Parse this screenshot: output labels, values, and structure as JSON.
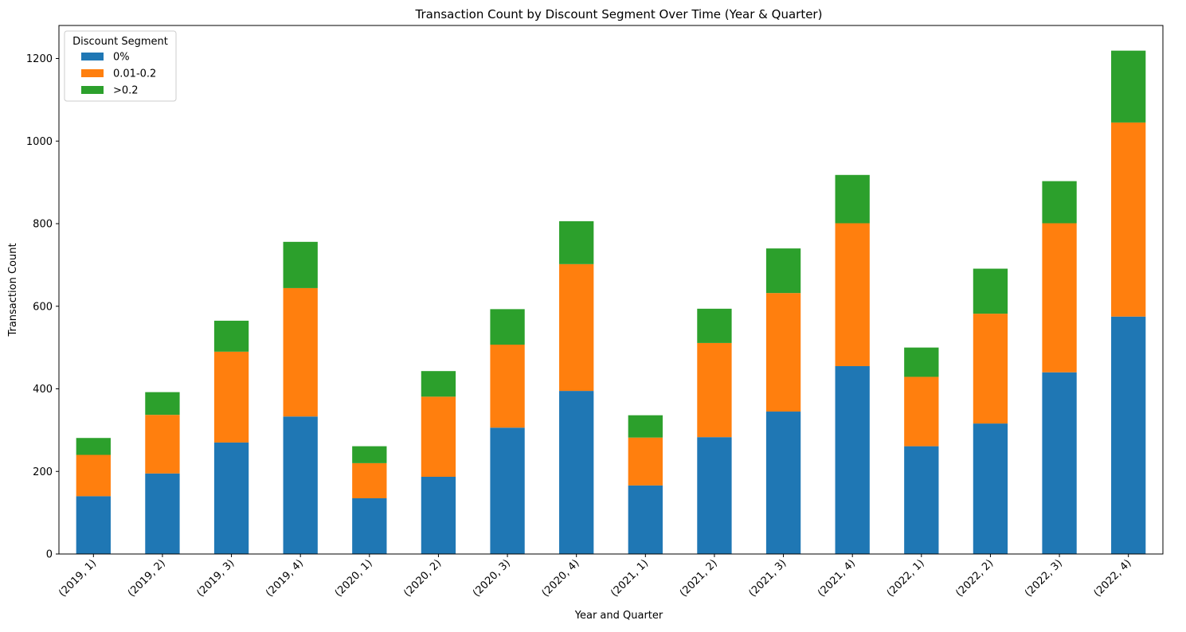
{
  "chart_data": {
    "type": "bar",
    "stacked": true,
    "title": "Transaction Count by Discount Segment Over Time (Year & Quarter)",
    "xlabel": "Year and Quarter",
    "ylabel": "Transaction Count",
    "ylim": [
      0,
      1280
    ],
    "yticks": [
      0,
      200,
      400,
      600,
      800,
      1000,
      1200
    ],
    "grid": false,
    "legend": {
      "title": "Discount Segment",
      "placement": "top-left"
    },
    "categories": [
      "(2019, 1)",
      "(2019, 2)",
      "(2019, 3)",
      "(2019, 4)",
      "(2020, 1)",
      "(2020, 2)",
      "(2020, 3)",
      "(2020, 4)",
      "(2021, 1)",
      "(2021, 2)",
      "(2021, 3)",
      "(2021, 4)",
      "(2022, 1)",
      "(2022, 2)",
      "(2022, 3)",
      "(2022, 4)"
    ],
    "series": [
      {
        "name": "0%",
        "color": "#1f77b4",
        "values": [
          140,
          195,
          270,
          333,
          135,
          187,
          306,
          395,
          166,
          283,
          345,
          455,
          261,
          316,
          440,
          575
        ]
      },
      {
        "name": "0.01-0.2",
        "color": "#ff7f0e",
        "values": [
          100,
          142,
          220,
          311,
          85,
          194,
          201,
          307,
          116,
          228,
          287,
          346,
          168,
          266,
          361,
          470
        ]
      },
      {
        "name": ">0.2",
        "color": "#2ca02c",
        "values": [
          41,
          55,
          75,
          112,
          41,
          62,
          86,
          104,
          54,
          83,
          108,
          117,
          71,
          109,
          102,
          174
        ]
      }
    ]
  }
}
